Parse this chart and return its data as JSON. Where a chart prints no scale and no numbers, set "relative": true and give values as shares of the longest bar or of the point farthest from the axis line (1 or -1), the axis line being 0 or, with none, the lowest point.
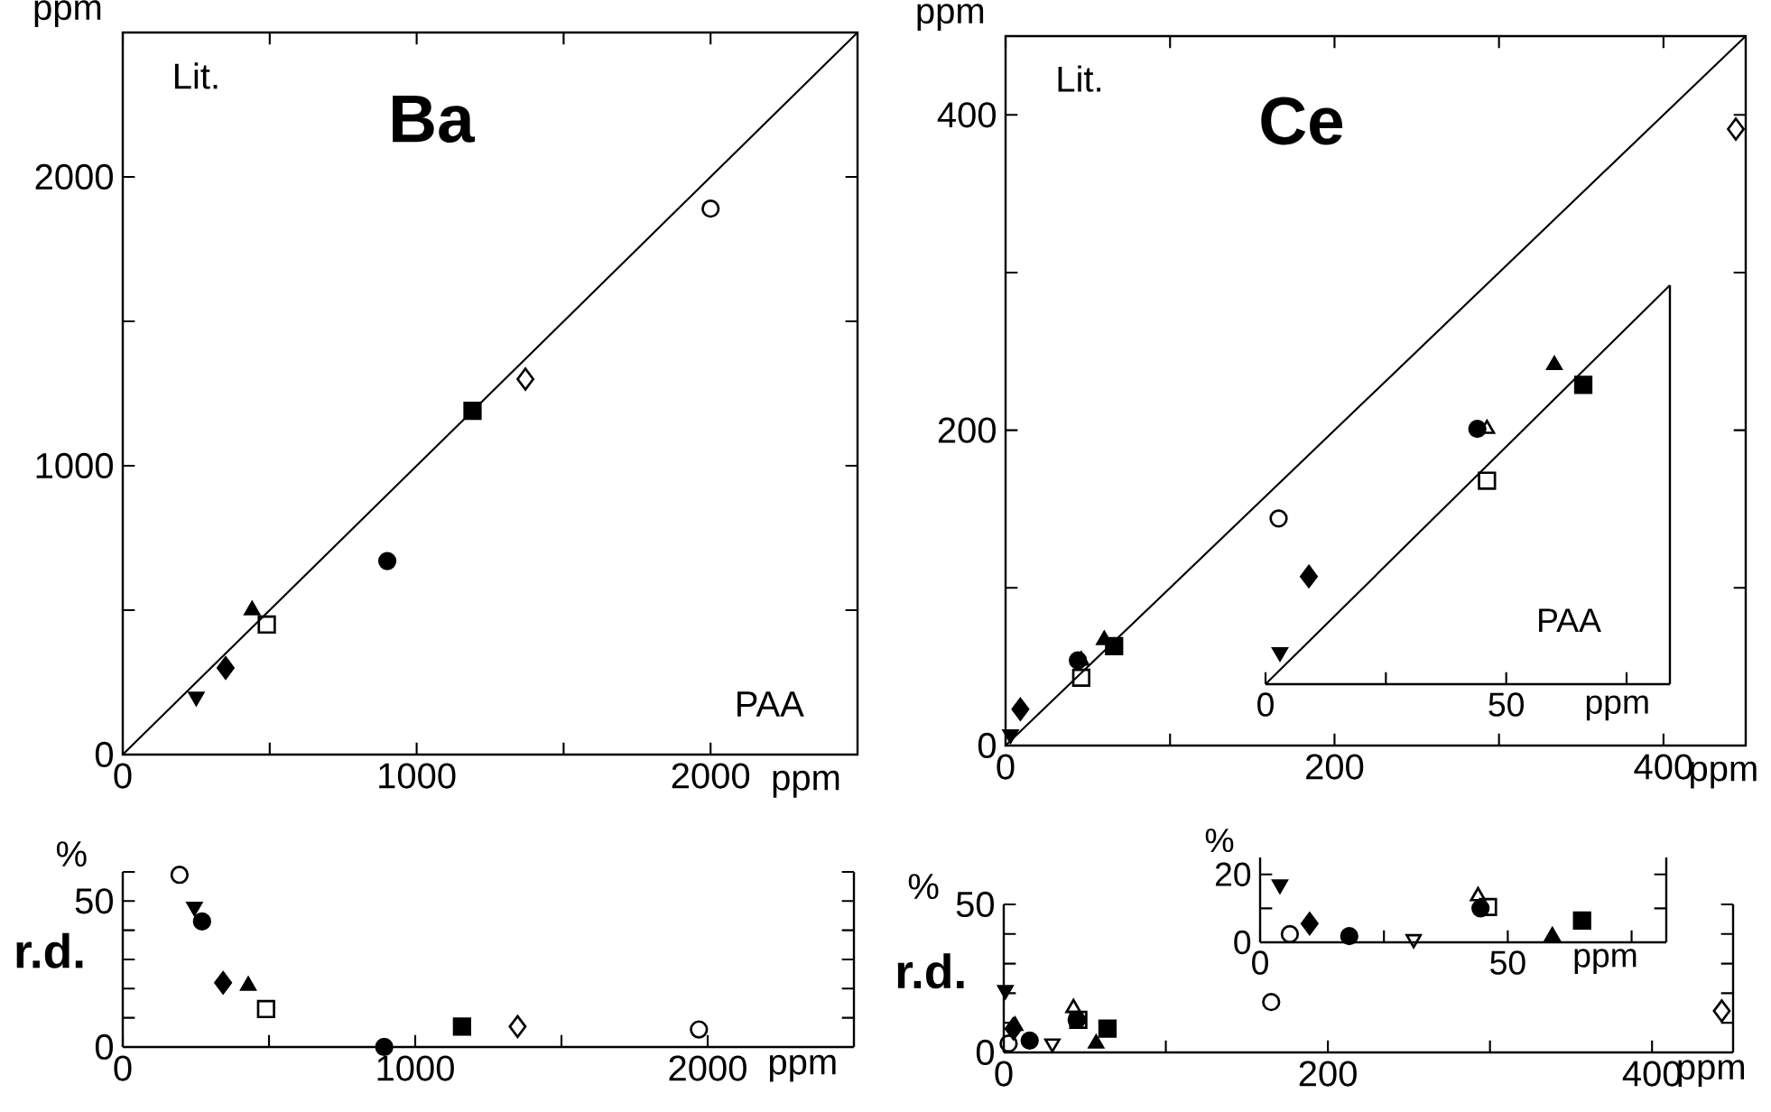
{
  "chart_data": [
    {
      "type": "scatter",
      "title": "Ba",
      "xlabel": "PAA",
      "ylabel": "Lit.",
      "annotations": [
        "ppm",
        "ppm"
      ],
      "xlim": [
        0,
        2500
      ],
      "ylim": [
        0,
        2500
      ],
      "xticks": [
        0,
        {
          "value": 500,
          "label": null
        },
        1000,
        {
          "value": 1500,
          "label": null
        },
        2000
      ],
      "yticks": [
        0,
        {
          "value": 500,
          "label": null
        },
        1000,
        {
          "value": 1500,
          "label": null
        },
        2000
      ],
      "series": [
        {
          "type": "line",
          "color": "#000000",
          "x": [
            0,
            2500
          ],
          "values": [
            0,
            2500
          ]
        },
        {
          "marker": "circle-open",
          "color": "#000000",
          "x": [
            2000
          ],
          "values": [
            1890
          ]
        },
        {
          "marker": "diamond-open",
          "color": "#000000",
          "x": [
            1370
          ],
          "values": [
            1300
          ]
        },
        {
          "marker": "square",
          "color": "#000000",
          "x": [
            1190
          ],
          "values": [
            1190
          ]
        },
        {
          "marker": "circle",
          "color": "#000000",
          "x": [
            900
          ],
          "values": [
            670
          ]
        },
        {
          "marker": "square-open",
          "color": "#000000",
          "x": [
            490
          ],
          "values": [
            450
          ]
        },
        {
          "marker": "triangle",
          "color": "#000000",
          "x": [
            440
          ],
          "values": [
            500
          ]
        },
        {
          "marker": "diamond",
          "color": "#000000",
          "x": [
            350
          ],
          "values": [
            300
          ]
        },
        {
          "marker": "triangle-down",
          "color": "#000000",
          "x": [
            250
          ],
          "values": [
            200
          ]
        }
      ]
    },
    {
      "type": "scatter",
      "title": "Ce",
      "ylabel": "Lit.",
      "annotations": [
        "ppm",
        "ppm"
      ],
      "xlim": [
        0,
        450
      ],
      "ylim": [
        0,
        450
      ],
      "xticks": [
        0,
        {
          "value": 100,
          "label": null
        },
        200,
        {
          "value": 300,
          "label": null
        },
        400
      ],
      "yticks": [
        0,
        {
          "value": 100,
          "label": null
        },
        200,
        {
          "value": 300,
          "label": null
        },
        400
      ],
      "series": [
        {
          "type": "line",
          "color": "#000000",
          "x": [
            0,
            450
          ],
          "values": [
            0,
            450
          ]
        },
        {
          "marker": "circle-open",
          "color": "#000000",
          "x": [
            166
          ],
          "values": [
            144
          ]
        },
        {
          "marker": "diamond-open",
          "color": "#000000",
          "x": [
            444
          ],
          "values": [
            391
          ]
        },
        {
          "marker": "triangle-down",
          "color": "#000000",
          "x": [
            3
          ],
          "values": [
            7
          ]
        },
        {
          "marker": "diamond",
          "color": "#000000",
          "x": [
            9
          ],
          "values": [
            23
          ]
        },
        {
          "marker": "circle",
          "color": "#000000",
          "x": [
            44
          ],
          "values": [
            54
          ]
        },
        {
          "marker": "triangle-open",
          "color": "#000000",
          "x": [
            46
          ],
          "values": [
            54
          ]
        },
        {
          "marker": "square-open",
          "color": "#000000",
          "x": [
            46
          ],
          "values": [
            43
          ]
        },
        {
          "marker": "triangle",
          "color": "#000000",
          "x": [
            60
          ],
          "values": [
            67
          ]
        },
        {
          "marker": "square",
          "color": "#000000",
          "x": [
            66
          ],
          "values": [
            63
          ]
        }
      ]
    },
    {
      "type": "scatter",
      "xlabel": "PAA",
      "annotations": [
        "ppm"
      ],
      "xlim": [
        0,
        84
      ],
      "relative": true,
      "xticks": [
        0,
        {
          "value": 25,
          "label": null
        },
        50,
        {
          "value": 75,
          "label": null
        }
      ],
      "series": [
        {
          "type": "line",
          "color": "#000000",
          "x": [
            0,
            84
          ],
          "values": [
            0,
            1
          ]
        },
        {
          "marker": "triangle-down",
          "color": "#000000",
          "x": [
            3
          ],
          "values": [
            0.08
          ]
        },
        {
          "marker": "diamond",
          "color": "#000000",
          "x": [
            9
          ],
          "values": [
            0.27
          ]
        },
        {
          "marker": "circle",
          "color": "#000000",
          "x": [
            44
          ],
          "values": [
            0.64
          ]
        },
        {
          "marker": "triangle-open",
          "color": "#000000",
          "x": [
            46
          ],
          "values": [
            0.64
          ]
        },
        {
          "marker": "square-open",
          "color": "#000000",
          "x": [
            46
          ],
          "values": [
            0.51
          ]
        },
        {
          "marker": "triangle",
          "color": "#000000",
          "x": [
            60
          ],
          "values": [
            0.8
          ]
        },
        {
          "marker": "square",
          "color": "#000000",
          "x": [
            66
          ],
          "values": [
            0.75
          ]
        }
      ]
    },
    {
      "type": "scatter",
      "ylabel": "r.d.",
      "annotations": [
        "%",
        "ppm"
      ],
      "xlim": [
        0,
        2500
      ],
      "ylim": [
        0,
        60
      ],
      "xticks": [
        0,
        {
          "value": 500,
          "label": null
        },
        1000,
        {
          "value": 1500,
          "label": null
        },
        2000
      ],
      "yticks": [
        0,
        {
          "value": 10,
          "label": null
        },
        {
          "value": 20,
          "label": null
        },
        {
          "value": 30,
          "label": null
        },
        {
          "value": 40,
          "label": null
        },
        50,
        {
          "value": 60,
          "label": null
        }
      ],
      "series": [
        {
          "marker": "circle-open",
          "color": "#000000",
          "x": [
            194,
            1970
          ],
          "values": [
            59,
            6
          ]
        },
        {
          "marker": "triangle-down",
          "color": "#000000",
          "x": [
            245
          ],
          "values": [
            48
          ]
        },
        {
          "marker": "circle",
          "color": "#000000",
          "x": [
            271,
            894
          ],
          "values": [
            43,
            0
          ]
        },
        {
          "marker": "diamond",
          "color": "#000000",
          "x": [
            343
          ],
          "values": [
            22
          ]
        },
        {
          "marker": "triangle",
          "color": "#000000",
          "x": [
            429
          ],
          "values": [
            21
          ]
        },
        {
          "marker": "square-open",
          "color": "#000000",
          "x": [
            490
          ],
          "values": [
            13
          ]
        },
        {
          "marker": "square",
          "color": "#000000",
          "x": [
            1160
          ],
          "values": [
            7
          ]
        },
        {
          "marker": "diamond-open",
          "color": "#000000",
          "x": [
            1350
          ],
          "values": [
            7
          ]
        }
      ]
    },
    {
      "type": "scatter",
      "ylabel": "r.d.",
      "annotations": [
        "%",
        "ppm"
      ],
      "xlim": [
        0,
        450
      ],
      "ylim": [
        0,
        50
      ],
      "xticks": [
        0,
        {
          "value": 100,
          "label": null
        },
        200,
        {
          "value": 300,
          "label": null
        },
        400
      ],
      "yticks": [
        0,
        {
          "value": 10,
          "label": null
        },
        {
          "value": 20,
          "label": null
        },
        {
          "value": 30,
          "label": null
        },
        {
          "value": 40,
          "label": null
        },
        50
      ],
      "series": [
        {
          "marker": "triangle-down",
          "color": "#000000",
          "x": [
            1
          ],
          "values": [
            21
          ]
        },
        {
          "marker": "diamond",
          "color": "#000000",
          "x": [
            6
          ],
          "values": [
            8
          ]
        },
        {
          "marker": "circle-open",
          "color": "#000000",
          "x": [
            3,
            165
          ],
          "values": [
            3,
            17
          ]
        },
        {
          "marker": "circle",
          "color": "#000000",
          "x": [
            16,
            45
          ],
          "values": [
            4,
            11
          ]
        },
        {
          "marker": "triangle-down-open",
          "color": "#000000",
          "x": [
            30
          ],
          "values": [
            3
          ]
        },
        {
          "marker": "triangle-open",
          "color": "#000000",
          "x": [
            43
          ],
          "values": [
            15
          ]
        },
        {
          "marker": "square-open",
          "color": "#000000",
          "x": [
            46
          ],
          "values": [
            11
          ]
        },
        {
          "marker": "triangle",
          "color": "#000000",
          "x": [
            7,
            57
          ],
          "values": [
            9,
            3
          ]
        },
        {
          "marker": "square",
          "color": "#000000",
          "x": [
            64
          ],
          "values": [
            8
          ]
        },
        {
          "marker": "diamond-open",
          "color": "#000000",
          "x": [
            443
          ],
          "values": [
            14
          ]
        }
      ]
    },
    {
      "type": "scatter",
      "annotations": [
        "%",
        "ppm"
      ],
      "xlim": [
        0,
        82
      ],
      "ylim": [
        0,
        25
      ],
      "xticks": [
        0,
        {
          "value": 25,
          "label": null
        },
        50,
        {
          "value": 75,
          "label": null
        }
      ],
      "yticks": [
        0,
        {
          "value": 10,
          "label": null
        },
        20
      ],
      "series": [
        {
          "marker": "triangle-down",
          "color": "#000000",
          "x": [
            4
          ],
          "values": [
            17
          ]
        },
        {
          "marker": "circle-open",
          "color": "#000000",
          "x": [
            6
          ],
          "values": [
            2.4
          ]
        },
        {
          "marker": "diamond",
          "color": "#000000",
          "x": [
            10
          ],
          "values": [
            5.5
          ]
        },
        {
          "marker": "circle",
          "color": "#000000",
          "x": [
            18,
            44.5
          ],
          "values": [
            1.8,
            10
          ]
        },
        {
          "marker": "triangle-down-open",
          "color": "#000000",
          "x": [
            31
          ],
          "values": [
            0.9
          ]
        },
        {
          "marker": "triangle-open",
          "color": "#000000",
          "x": [
            44
          ],
          "values": [
            13.6
          ]
        },
        {
          "marker": "square-open",
          "color": "#000000",
          "x": [
            46
          ],
          "values": [
            10.4
          ]
        },
        {
          "marker": "triangle",
          "color": "#000000",
          "x": [
            59
          ],
          "values": [
            1.8
          ]
        },
        {
          "marker": "square",
          "color": "#000000",
          "x": [
            65
          ],
          "values": [
            6.4
          ]
        }
      ]
    }
  ]
}
